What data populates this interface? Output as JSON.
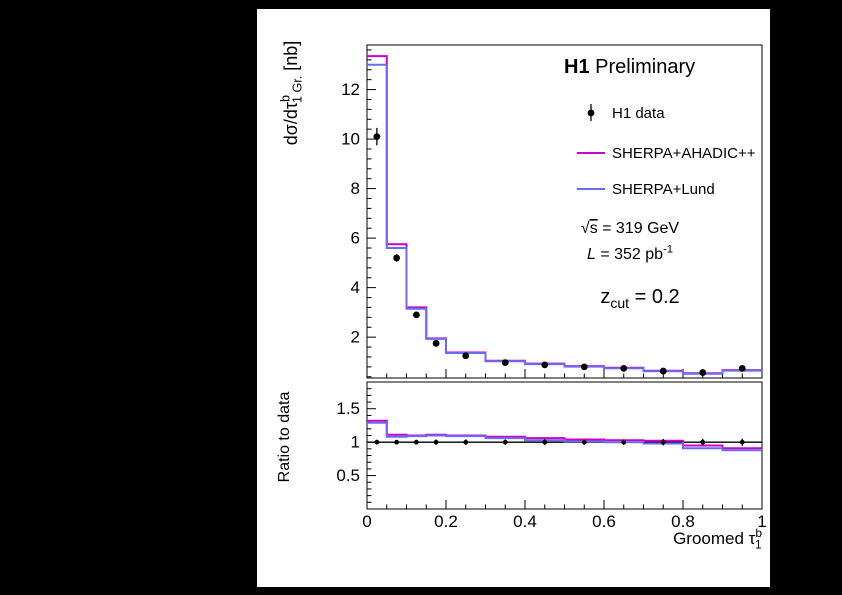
{
  "header": {
    "experiment": "H1",
    "status": "Preliminary"
  },
  "legend": {
    "items": [
      {
        "label": "H1 data",
        "marker": "point",
        "color": "#000000"
      },
      {
        "label": "SHERPA+AHADIC++",
        "marker": "line",
        "color": "#cc00cc"
      },
      {
        "label": "SHERPA+Lund",
        "marker": "line",
        "color": "#6b6bee"
      }
    ]
  },
  "annotations": {
    "sqrt_s": [
      {
        "t": "√"
      },
      {
        "t": "s",
        "style": "overline"
      },
      {
        "t": " = 319 GeV"
      }
    ],
    "luminosity": [
      {
        "t": "L",
        "style": "italic"
      },
      {
        "t": " = 352 pb"
      },
      {
        "t": "-1",
        "style": "sup"
      }
    ],
    "z_cut": [
      {
        "t": "z"
      },
      {
        "t": "cut",
        "style": "sub"
      },
      {
        "t": " = 0.2"
      }
    ]
  },
  "axes": {
    "main_y_title_parts": [
      {
        "t": "dσ/dτ"
      },
      {
        "t": "b",
        "style": "sup"
      },
      {
        "t": "1 Gr.",
        "style": "sub",
        "dx": -8
      },
      {
        "t": " [nb]"
      }
    ],
    "ratio_y_title": "Ratio to data",
    "x_title_parts": [
      {
        "t": "Groomed τ"
      },
      {
        "t": "b",
        "style": "sup"
      },
      {
        "t": "1",
        "style": "sub",
        "dx": -7
      }
    ],
    "x_tick_labels": [
      "0",
      "0.2",
      "0.4",
      "0.6",
      "0.8",
      "1"
    ],
    "main_y_tick_labels": [
      "2",
      "4",
      "6",
      "8",
      "10",
      "12"
    ],
    "ratio_y_tick_labels": [
      "0.5",
      "1",
      "1.5"
    ]
  },
  "chart_data": [
    {
      "type": "line",
      "panel": "main",
      "title": "",
      "ylabel": "dσ/dτ_{1 Gr.}^{b} [nb]",
      "xlim": [
        0,
        1
      ],
      "ylim": [
        0.35,
        13.8
      ],
      "yticks": [
        2,
        4,
        6,
        8,
        10,
        12
      ],
      "xticks": [
        0,
        0.2,
        0.4,
        0.6,
        0.8,
        1
      ],
      "grid": false,
      "legend_position": "upper right",
      "bin_edges": [
        0,
        0.05,
        0.1,
        0.15,
        0.2,
        0.3,
        0.4,
        0.5,
        0.6,
        0.7,
        0.8,
        0.9,
        1.0
      ],
      "series": [
        {
          "name": "H1 data",
          "style": "points",
          "color": "#000000",
          "x": [
            0.025,
            0.075,
            0.125,
            0.175,
            0.25,
            0.35,
            0.45,
            0.55,
            0.65,
            0.75,
            0.85,
            0.95
          ],
          "y": [
            10.1,
            5.2,
            2.9,
            1.75,
            1.25,
            0.97,
            0.88,
            0.8,
            0.74,
            0.63,
            0.57,
            0.74
          ],
          "yerr": [
            0.35,
            0.15,
            0.1,
            0.07,
            0.05,
            0.04,
            0.04,
            0.03,
            0.03,
            0.03,
            0.03,
            0.04
          ]
        },
        {
          "name": "SHERPA+AHADIC++",
          "style": "hist",
          "color": "#cc00cc",
          "values": [
            13.35,
            5.75,
            3.2,
            1.95,
            1.38,
            1.05,
            0.93,
            0.83,
            0.76,
            0.64,
            0.54,
            0.67
          ]
        },
        {
          "name": "SHERPA+Lund",
          "style": "hist",
          "color": "#6b6bee",
          "values": [
            13.0,
            5.6,
            3.15,
            1.93,
            1.36,
            1.03,
            0.91,
            0.81,
            0.74,
            0.62,
            0.52,
            0.65
          ]
        }
      ]
    },
    {
      "type": "line",
      "panel": "ratio",
      "ylabel": "Ratio to data",
      "xlabel": "Groomed τ_1^b",
      "xlim": [
        0,
        1
      ],
      "ylim": [
        0,
        1.9
      ],
      "yticks": [
        0.5,
        1,
        1.5
      ],
      "xticks": [
        0,
        0.2,
        0.4,
        0.6,
        0.8,
        1
      ],
      "reference_line": 1,
      "grid": false,
      "bin_edges": [
        0,
        0.05,
        0.1,
        0.15,
        0.2,
        0.3,
        0.4,
        0.5,
        0.6,
        0.7,
        0.8,
        0.9,
        1.0
      ],
      "series": [
        {
          "name": "H1 data ratio",
          "style": "points",
          "color": "#000000",
          "x": [
            0.025,
            0.075,
            0.125,
            0.175,
            0.25,
            0.35,
            0.45,
            0.55,
            0.65,
            0.75,
            0.85,
            0.95
          ],
          "y": [
            1,
            1,
            1,
            1,
            1,
            1,
            1,
            1,
            1,
            1,
            1,
            1
          ],
          "yerr": [
            0.034,
            0.029,
            0.034,
            0.04,
            0.04,
            0.04,
            0.045,
            0.038,
            0.04,
            0.048,
            0.05,
            0.054
          ]
        },
        {
          "name": "SHERPA+AHADIC++ ratio",
          "style": "hist",
          "color": "#cc00cc",
          "values": [
            1.32,
            1.11,
            1.1,
            1.11,
            1.1,
            1.08,
            1.06,
            1.04,
            1.03,
            1.02,
            0.95,
            0.91
          ]
        },
        {
          "name": "SHERPA+Lund ratio",
          "style": "hist",
          "color": "#6b6bee",
          "values": [
            1.29,
            1.08,
            1.09,
            1.1,
            1.09,
            1.06,
            1.03,
            1.01,
            1.0,
            0.98,
            0.91,
            0.88
          ]
        }
      ]
    }
  ]
}
